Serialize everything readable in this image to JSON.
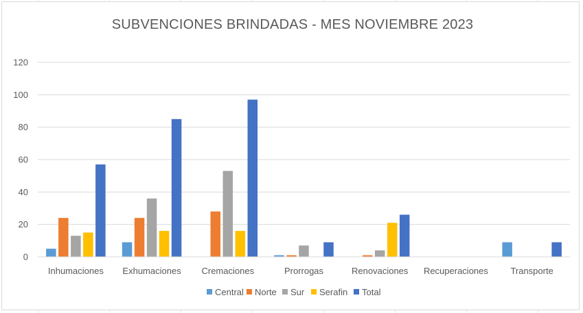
{
  "chart_data": {
    "type": "bar",
    "title": "SUBVENCIONES BRINDADAS - MES NOVIEMBRE 2023",
    "categories": [
      "Inhumaciones",
      "Exhumaciones",
      "Cremaciones",
      "Prorrogas",
      "Renovaciones",
      "Recuperaciones",
      "Transporte"
    ],
    "series": [
      {
        "name": "Central",
        "color": "#5b9bd5",
        "values": [
          5,
          9,
          0,
          1,
          0,
          0,
          9
        ]
      },
      {
        "name": "Norte",
        "color": "#ed7d31",
        "values": [
          24,
          24,
          28,
          1,
          1,
          0,
          0
        ]
      },
      {
        "name": "Sur",
        "color": "#a5a5a5",
        "values": [
          13,
          36,
          53,
          7,
          4,
          0,
          0
        ]
      },
      {
        "name": "Serafin",
        "color": "#ffc000",
        "values": [
          15,
          16,
          16,
          0,
          21,
          0,
          0
        ]
      },
      {
        "name": "Total",
        "color": "#4472c4",
        "values": [
          57,
          85,
          97,
          9,
          26,
          0,
          9
        ]
      }
    ],
    "ylim": [
      0,
      120
    ],
    "yticks": [
      "0",
      "20",
      "40",
      "60",
      "80",
      "100",
      "120"
    ],
    "grid": true,
    "legend": "bottom",
    "xlabel": "",
    "ylabel": ""
  }
}
